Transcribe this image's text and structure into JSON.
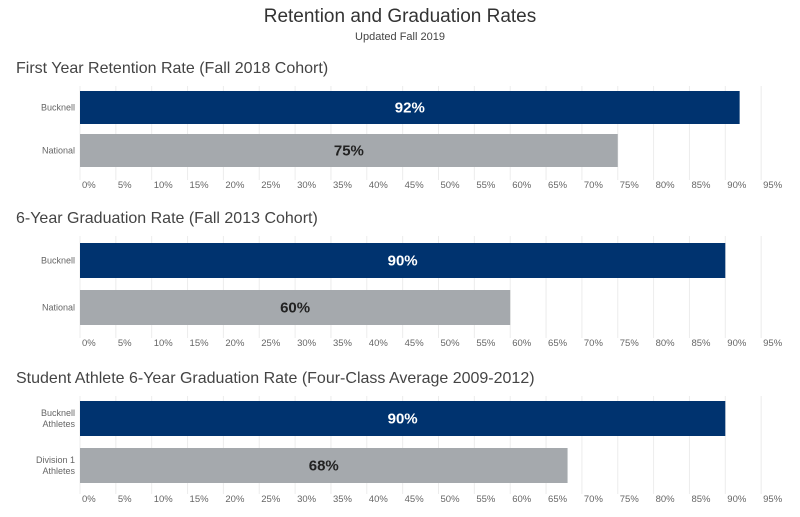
{
  "title": "Retention and Graduation Rates",
  "subtitle": "Updated Fall 2019",
  "colors": {
    "primary_bar": "#00336f",
    "comparison_bar": "#a5a9ad",
    "primary_label": "#ffffff",
    "comparison_label": "#222222",
    "grid": "#ececec"
  },
  "chart_data": [
    {
      "type": "bar",
      "orientation": "horizontal",
      "title": "First Year Retention Rate (Fall 2018 Cohort)",
      "categories": [
        [
          "Bucknell"
        ],
        [
          "National"
        ]
      ],
      "values": [
        92,
        75
      ],
      "value_labels": [
        "92%",
        "75%"
      ],
      "xlim": [
        0,
        100
      ],
      "ticks": [
        "0%",
        "5%",
        "10%",
        "15%",
        "20%",
        "25%",
        "30%",
        "35%",
        "40%",
        "45%",
        "50%",
        "55%",
        "60%",
        "65%",
        "70%",
        "75%",
        "80%",
        "85%",
        "90%",
        "95%"
      ],
      "grid": true
    },
    {
      "type": "bar",
      "orientation": "horizontal",
      "title": "6-Year Graduation Rate (Fall 2013 Cohort)",
      "categories": [
        [
          "Bucknell"
        ],
        [
          "National"
        ]
      ],
      "values": [
        90,
        60
      ],
      "value_labels": [
        "90%",
        "60%"
      ],
      "xlim": [
        0,
        100
      ],
      "ticks": [
        "0%",
        "5%",
        "10%",
        "15%",
        "20%",
        "25%",
        "30%",
        "35%",
        "40%",
        "45%",
        "50%",
        "55%",
        "60%",
        "65%",
        "70%",
        "75%",
        "80%",
        "85%",
        "90%",
        "95%"
      ],
      "grid": true
    },
    {
      "type": "bar",
      "orientation": "horizontal",
      "title": "Student Athlete 6-Year Graduation Rate (Four-Class Average 2009-2012)",
      "categories": [
        [
          "Bucknell",
          "Athletes"
        ],
        [
          "Division 1",
          "Athletes"
        ]
      ],
      "values": [
        90,
        68
      ],
      "value_labels": [
        "90%",
        "68%"
      ],
      "xlim": [
        0,
        100
      ],
      "ticks": [
        "0%",
        "5%",
        "10%",
        "15%",
        "20%",
        "25%",
        "30%",
        "35%",
        "40%",
        "45%",
        "50%",
        "55%",
        "60%",
        "65%",
        "70%",
        "75%",
        "80%",
        "85%",
        "90%",
        "95%"
      ],
      "grid": true
    }
  ]
}
